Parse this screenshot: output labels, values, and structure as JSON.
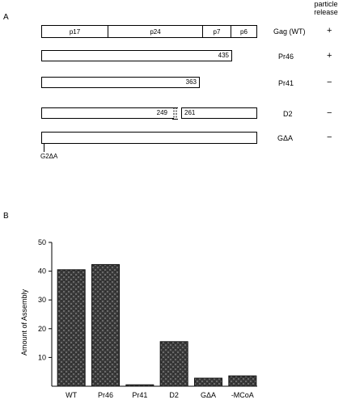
{
  "panel_a": {
    "letter": "A",
    "release_header": [
      "particle",
      "release"
    ],
    "constructs": [
      {
        "name": "Gag (WT)",
        "release": "+",
        "segments": [
          "p17",
          "p24",
          "p7",
          "p6"
        ]
      },
      {
        "name": "Pr46",
        "release": "+",
        "end_label": "435"
      },
      {
        "name": "Pr41",
        "release": "−",
        "end_label": "363"
      },
      {
        "name": "D2",
        "release": "−",
        "left_end": "249",
        "right_start": "261"
      },
      {
        "name": "GΔA",
        "release": "−",
        "mutation_label": "G2ΔA"
      }
    ]
  },
  "panel_b": {
    "letter": "B"
  },
  "chart_data": {
    "type": "bar",
    "categories": [
      "WT",
      "Pr46",
      "Pr41",
      "D2",
      "GΔA",
      "-MCoA"
    ],
    "values": [
      40.5,
      42.3,
      0.5,
      15.5,
      2.8,
      3.6
    ],
    "ylabel": "Amount of Assembly",
    "ylim": [
      0,
      50
    ],
    "yticks": [
      10,
      20,
      30,
      40,
      50
    ],
    "bar_color": "#444444"
  }
}
